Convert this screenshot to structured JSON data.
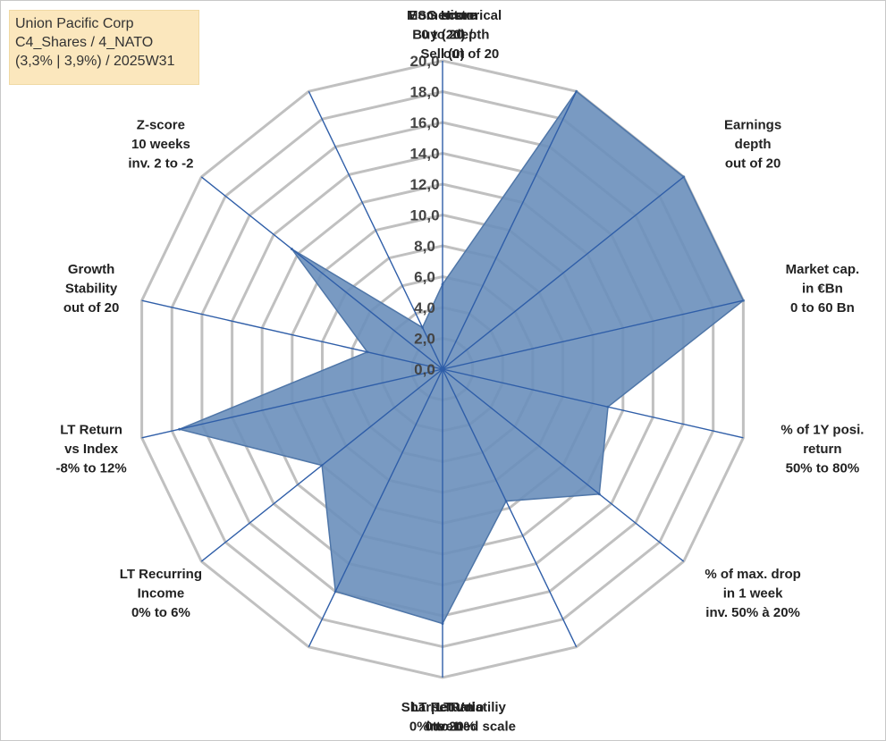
{
  "info_box": {
    "line1": "Union Pacific Corp",
    "line2": "C4_Shares / 4_NATO",
    "line3": "(3,3% | 3,9%) / 2025W31"
  },
  "chart_data": {
    "type": "radar",
    "title": "",
    "r_range": [
      0,
      20
    ],
    "r_tick_step": 2,
    "r_tick_labels": [
      "0,0",
      "2,0",
      "4,0",
      "6,0",
      "8,0",
      "10,0",
      "12,0",
      "14,0",
      "16,0",
      "18,0",
      "20,0"
    ],
    "grid": true,
    "categories": [
      [
        "ESG score",
        "0 to 20"
      ],
      [
        "Historical",
        "depth",
        "out of 20"
      ],
      [
        "Earnings",
        "depth",
        "out of 20"
      ],
      [
        "Market cap.",
        "in €Bn",
        "0 to 60 Bn"
      ],
      [
        "% of 1Y posi.",
        "return",
        "50% to 80%"
      ],
      [
        "% of max. drop",
        "in 1 week",
        "inv. 50% à 20%"
      ],
      [
        "LT Volatiliy",
        "inverted scale",
        "40% to 0%"
      ],
      [
        "Sharpe Ratio",
        "0 to 1"
      ],
      [
        "LT Return",
        "0% to 20%"
      ],
      [
        "LT Recurring",
        "Income",
        "0% to 6%"
      ],
      [
        "LT Return",
        "vs Index",
        "-8% to 12%"
      ],
      [
        "Growth",
        "Stability",
        "out of 20"
      ],
      [
        "Z-score",
        "10 weeks",
        "inv. 2 to -2"
      ],
      [
        "Momentum",
        "Buy (20) /",
        "Sell (0)"
      ]
    ],
    "series": [
      {
        "values": [
          5.5,
          20,
          20,
          20,
          11,
          13,
          9.5,
          16.5,
          16,
          10,
          17.5,
          5,
          12.5,
          3
        ],
        "color": "#6a8fbb"
      }
    ],
    "colors": {
      "fill": "#6a8fbb",
      "spoke": "#2f5ea8",
      "grid": "#c0c0c0"
    }
  }
}
